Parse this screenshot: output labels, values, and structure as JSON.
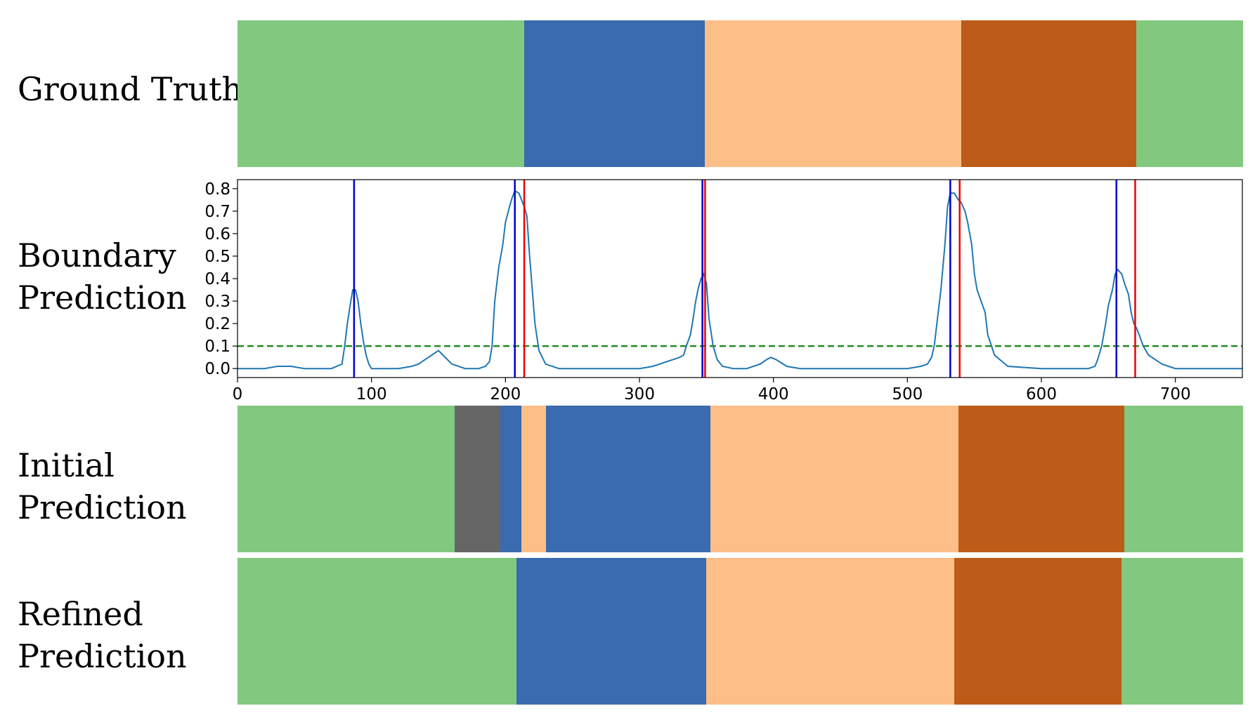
{
  "labels": {
    "ground_truth": "Ground Truth",
    "boundary": "Boundary\nPrediction",
    "initial": "Initial\nPrediction",
    "refined": "Refined\nPrediction"
  },
  "class_colors": {
    "green": "#82c97f",
    "blue": "#3a6aaf",
    "peach": "#fdbf87",
    "brown": "#bd5b18",
    "gray": "#666666"
  },
  "segmentations": {
    "total_frames": 750,
    "ground_truth": [
      {
        "class": "green",
        "start": 0,
        "end": 214
      },
      {
        "class": "blue",
        "start": 214,
        "end": 349
      },
      {
        "class": "peach",
        "start": 349,
        "end": 540
      },
      {
        "class": "brown",
        "start": 540,
        "end": 671
      },
      {
        "class": "green",
        "start": 671,
        "end": 750
      }
    ],
    "initial": [
      {
        "class": "green",
        "start": 0,
        "end": 162
      },
      {
        "class": "gray",
        "start": 162,
        "end": 196
      },
      {
        "class": "blue",
        "start": 196,
        "end": 212
      },
      {
        "class": "peach",
        "start": 212,
        "end": 230
      },
      {
        "class": "blue",
        "start": 230,
        "end": 353
      },
      {
        "class": "peach",
        "start": 353,
        "end": 538
      },
      {
        "class": "brown",
        "start": 538,
        "end": 662
      },
      {
        "class": "green",
        "start": 662,
        "end": 750
      }
    ],
    "refined": [
      {
        "class": "green",
        "start": 0,
        "end": 208
      },
      {
        "class": "blue",
        "start": 208,
        "end": 350
      },
      {
        "class": "peach",
        "start": 350,
        "end": 535
      },
      {
        "class": "brown",
        "start": 535,
        "end": 660
      },
      {
        "class": "green",
        "start": 660,
        "end": 750
      }
    ]
  },
  "chart_data": {
    "type": "line",
    "xlim": [
      0,
      750
    ],
    "ylim": [
      -0.04,
      0.84
    ],
    "x_ticks": [
      0,
      100,
      200,
      300,
      400,
      500,
      600,
      700
    ],
    "y_ticks": [
      0.0,
      0.1,
      0.2,
      0.3,
      0.4,
      0.5,
      0.6,
      0.7,
      0.8
    ],
    "y_tick_labels": [
      "0.0",
      "0.1",
      "0.2",
      "0.3",
      "0.4",
      "0.5",
      "0.6",
      "0.7",
      "0.8"
    ],
    "series": [
      {
        "color": "#1f77b4",
        "x": [
          0,
          20,
          30,
          40,
          50,
          60,
          70,
          78,
          80,
          82,
          84,
          86,
          88,
          90,
          92,
          94,
          96,
          98,
          100,
          110,
          120,
          130,
          135,
          140,
          145,
          150,
          155,
          160,
          170,
          180,
          185,
          188,
          190,
          192,
          195,
          198,
          200,
          203,
          205,
          207,
          210,
          212,
          214,
          216,
          218,
          220,
          222,
          225,
          230,
          240,
          260,
          280,
          300,
          310,
          315,
          320,
          325,
          330,
          333,
          335,
          338,
          340,
          342,
          344,
          346,
          348,
          350,
          352,
          355,
          358,
          362,
          370,
          380,
          390,
          395,
          398,
          402,
          410,
          420,
          440,
          460,
          480,
          500,
          510,
          515,
          518,
          520,
          522,
          525,
          528,
          530,
          532,
          535,
          538,
          540,
          543,
          545,
          548,
          550,
          552,
          555,
          558,
          560,
          565,
          575,
          600,
          620,
          635,
          640,
          642,
          645,
          648,
          650,
          653,
          655,
          657,
          660,
          662,
          665,
          667,
          669,
          671,
          673,
          676,
          680,
          690,
          700,
          720,
          740,
          750
        ],
        "y": [
          0.0,
          0.0,
          0.01,
          0.01,
          0.0,
          0.0,
          0.0,
          0.02,
          0.1,
          0.2,
          0.28,
          0.35,
          0.35,
          0.3,
          0.2,
          0.12,
          0.06,
          0.02,
          0.0,
          0.0,
          0.0,
          0.01,
          0.02,
          0.04,
          0.06,
          0.08,
          0.05,
          0.02,
          0.0,
          0.0,
          0.01,
          0.03,
          0.1,
          0.3,
          0.45,
          0.55,
          0.65,
          0.72,
          0.76,
          0.79,
          0.78,
          0.75,
          0.72,
          0.68,
          0.5,
          0.35,
          0.2,
          0.08,
          0.02,
          0.0,
          0.0,
          0.0,
          0.0,
          0.01,
          0.02,
          0.03,
          0.04,
          0.05,
          0.06,
          0.1,
          0.15,
          0.22,
          0.3,
          0.36,
          0.4,
          0.42,
          0.38,
          0.22,
          0.1,
          0.04,
          0.01,
          0.0,
          0.0,
          0.02,
          0.04,
          0.05,
          0.04,
          0.01,
          0.0,
          0.0,
          0.0,
          0.0,
          0.0,
          0.01,
          0.02,
          0.05,
          0.1,
          0.2,
          0.35,
          0.55,
          0.72,
          0.78,
          0.78,
          0.75,
          0.74,
          0.7,
          0.65,
          0.55,
          0.42,
          0.35,
          0.3,
          0.25,
          0.15,
          0.06,
          0.01,
          0.0,
          0.0,
          0.0,
          0.01,
          0.04,
          0.1,
          0.2,
          0.28,
          0.35,
          0.42,
          0.44,
          0.42,
          0.38,
          0.33,
          0.25,
          0.2,
          0.18,
          0.15,
          0.1,
          0.06,
          0.02,
          0.0,
          0.0,
          0.0,
          0.0
        ]
      }
    ],
    "vlines_blue": [
      87,
      207,
      347,
      532,
      656
    ],
    "vlines_red": [
      214,
      349,
      539,
      670
    ],
    "threshold": 0.1,
    "threshold_color": "#228b22",
    "blue_line_color": "#0000cc",
    "red_line_color": "#ee0000",
    "grid": false
  }
}
